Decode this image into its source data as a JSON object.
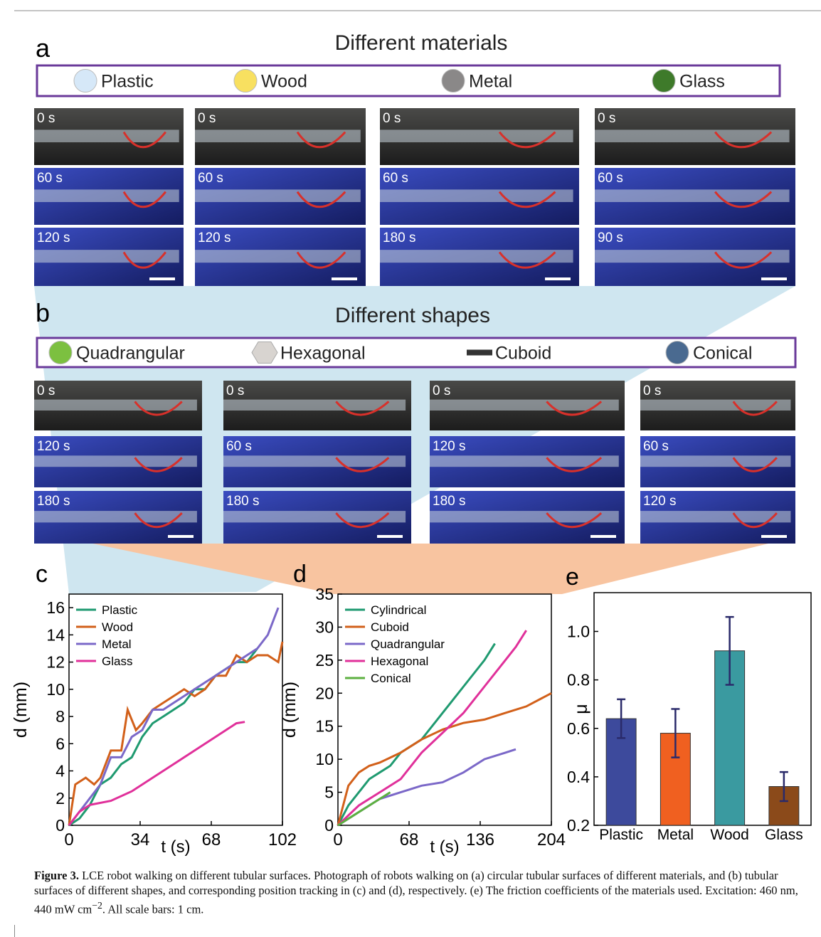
{
  "panels": {
    "a": {
      "label": "a",
      "title": "Different materials",
      "legend": [
        {
          "name": "Plastic",
          "color": "#d6e8f8"
        },
        {
          "name": "Wood",
          "color": "#f8e060"
        },
        {
          "name": "Metal",
          "color": "#8a8888"
        },
        {
          "name": "Glass",
          "color": "#3e7a2a"
        }
      ],
      "times": [
        [
          "0 s",
          "60 s",
          "120 s"
        ],
        [
          "0 s",
          "60 s",
          "120 s"
        ],
        [
          "0 s",
          "60 s",
          "180 s"
        ],
        [
          "0 s",
          "60 s",
          "90 s"
        ]
      ]
    },
    "b": {
      "label": "b",
      "title": "Different shapes",
      "legend": [
        {
          "name": "Quadrangular",
          "color": "#7cc040"
        },
        {
          "name": "Hexagonal",
          "color": "#d8d4d0"
        },
        {
          "name": "Cuboid",
          "color": "#333333"
        },
        {
          "name": "Conical",
          "color": "#4a6a90"
        }
      ],
      "times": [
        [
          "0 s",
          "120 s",
          "180 s"
        ],
        [
          "0 s",
          "60 s",
          "180 s"
        ],
        [
          "0 s",
          "120 s",
          "180 s"
        ],
        [
          "0 s",
          "60 s",
          "120 s"
        ]
      ]
    }
  },
  "chart_data": [
    {
      "type": "line",
      "label": "c",
      "x_label": "t (s)",
      "y_label": "d (mm)",
      "xlim": [
        0,
        102
      ],
      "xticks": [
        0,
        34,
        68,
        102
      ],
      "ylim": [
        0,
        17
      ],
      "yticks": [
        0,
        2,
        4,
        6,
        8,
        10,
        12,
        14,
        16
      ],
      "series": [
        {
          "name": "Plastic",
          "color": "#1f9a70",
          "x": [
            0,
            5,
            10,
            15,
            20,
            25,
            30,
            35,
            40,
            45,
            50,
            55,
            60,
            65,
            70,
            75,
            80,
            85,
            90
          ],
          "values": [
            0,
            0.5,
            1.5,
            3,
            3.5,
            4.5,
            5,
            6.5,
            7.5,
            8,
            8.5,
            9,
            10,
            10,
            11,
            11.5,
            12,
            12,
            13
          ]
        },
        {
          "name": "Wood",
          "color": "#d2601a",
          "x": [
            0,
            3,
            8,
            12,
            15,
            20,
            25,
            28,
            32,
            35,
            40,
            45,
            50,
            55,
            60,
            65,
            70,
            75,
            80,
            85,
            90,
            95,
            100,
            102
          ],
          "values": [
            0,
            3,
            3.5,
            3,
            3.5,
            5.5,
            5.5,
            8.5,
            7,
            7.5,
            8.5,
            9,
            9.5,
            10,
            9.5,
            10,
            11,
            11,
            12.5,
            12,
            12.5,
            12.5,
            12,
            13.5
          ]
        },
        {
          "name": "Metal",
          "color": "#7b68c8",
          "x": [
            0,
            5,
            10,
            15,
            20,
            25,
            30,
            35,
            40,
            45,
            50,
            60,
            70,
            80,
            90,
            95,
            100
          ],
          "values": [
            0,
            1,
            2,
            3,
            5,
            5,
            6.5,
            7,
            8.5,
            8.5,
            9,
            10,
            11,
            12,
            13,
            14,
            16
          ]
        },
        {
          "name": "Glass",
          "color": "#e0309a",
          "x": [
            0,
            5,
            10,
            20,
            30,
            40,
            50,
            60,
            70,
            80,
            84
          ],
          "values": [
            0,
            1,
            1.5,
            1.8,
            2.5,
            3.5,
            4.5,
            5.5,
            6.5,
            7.5,
            7.6
          ]
        }
      ]
    },
    {
      "type": "line",
      "label": "d",
      "x_label": "t (s)",
      "y_label": "d (mm)",
      "xlim": [
        0,
        204
      ],
      "xticks": [
        0,
        68,
        136,
        204
      ],
      "ylim": [
        0,
        35
      ],
      "yticks": [
        0,
        5,
        10,
        15,
        20,
        25,
        30,
        35
      ],
      "series": [
        {
          "name": "Cylindrical",
          "color": "#1f9a70",
          "x": [
            0,
            10,
            20,
            30,
            40,
            50,
            60,
            80,
            100,
            120,
            140,
            150
          ],
          "values": [
            0,
            3,
            5,
            7,
            8,
            9,
            11,
            13,
            17,
            21,
            25,
            27.5
          ]
        },
        {
          "name": "Cuboid",
          "color": "#d2601a",
          "x": [
            0,
            10,
            20,
            30,
            40,
            60,
            80,
            100,
            120,
            140,
            160,
            180,
            204
          ],
          "values": [
            0,
            6,
            8,
            9,
            9.5,
            11,
            13,
            14.5,
            15.5,
            16,
            17,
            18,
            20
          ]
        },
        {
          "name": "Quadrangular",
          "color": "#7b68c8",
          "x": [
            0,
            20,
            40,
            60,
            80,
            100,
            120,
            140,
            160,
            170
          ],
          "values": [
            0,
            2,
            4,
            5,
            6,
            6.5,
            8,
            10,
            11,
            11.5
          ]
        },
        {
          "name": "Hexagonal",
          "color": "#e0309a",
          "x": [
            0,
            20,
            40,
            60,
            80,
            100,
            120,
            140,
            160,
            170,
            180
          ],
          "values": [
            0,
            3,
            5,
            7,
            11,
            14,
            17,
            21,
            25,
            27,
            29.5
          ]
        },
        {
          "name": "Conical",
          "color": "#5cb040",
          "x": [
            0,
            10,
            20,
            30,
            40,
            50
          ],
          "values": [
            0,
            1,
            2,
            3,
            4,
            5
          ]
        }
      ]
    },
    {
      "type": "bar",
      "label": "e",
      "y_label": "μ",
      "categories": [
        "Plastic",
        "Metal",
        "Wood",
        "Glass"
      ],
      "values": [
        0.64,
        0.58,
        0.92,
        0.36
      ],
      "errors": [
        0.08,
        0.1,
        0.14,
        0.06
      ],
      "colors": [
        "#3d4a9c",
        "#f06020",
        "#3a9aa0",
        "#8b4a1a"
      ],
      "ylim": [
        0.2,
        1.16
      ],
      "yticks": [
        0.2,
        0.4,
        0.6,
        0.8,
        {
          "value": 1,
          "label": "1.0"
        }
      ]
    }
  ],
  "caption": {
    "label": "Figure 3.",
    "text": " LCE robot walking on different tubular surfaces. Photograph of robots walking on (a) circular tubular surfaces of different materials, and (b) tubular surfaces of different shapes, and corresponding position tracking in (c) and (d), respectively. (e) The friction coefficients of the materials used. Excitation: 460 nm, 440 mW cm",
    "superscript": "−2",
    "tail": ". All scale bars: 1 cm."
  }
}
